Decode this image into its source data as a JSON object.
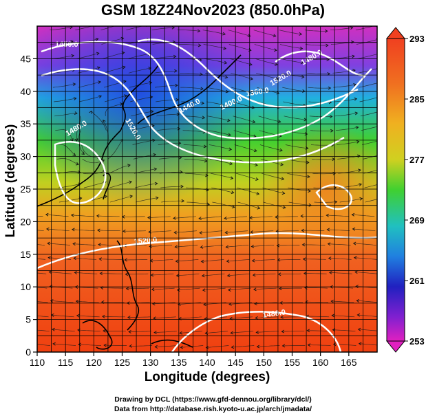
{
  "title": "GSM 18Z24Nov2023 (850.0hPa)",
  "xlabel": "Longitude (degrees)",
  "ylabel": "Latitude  (degrees)",
  "x_ticks": [
    "110",
    "115",
    "120",
    "125",
    "130",
    "135",
    "140",
    "145",
    "150",
    "155",
    "160",
    "165"
  ],
  "y_ticks": [
    "0",
    "5",
    "10",
    "15",
    "20",
    "25",
    "30",
    "35",
    "40",
    "45"
  ],
  "colorbar_ticks": [
    "293",
    "285",
    "277",
    "269",
    "261",
    "253"
  ],
  "contour_labels": [
    "1450.0",
    "1440.0",
    "1400.0",
    "1360.0",
    "1520.0",
    "1480.0",
    "1520.0",
    "1480.0",
    "1520.0",
    "1480.0"
  ],
  "credit_line1": "Drawing by DCL (https://www.gfd-dennou.org/library/dcl/)",
  "credit_line2": "Data from http://database.rish.kyoto-u.ac.jp/arch/jmadata/",
  "colors": {
    "min": "#e020c0",
    "low": "#2030e0",
    "mid": "#40d020",
    "high": "#f0a000",
    "max": "#f04010"
  }
}
